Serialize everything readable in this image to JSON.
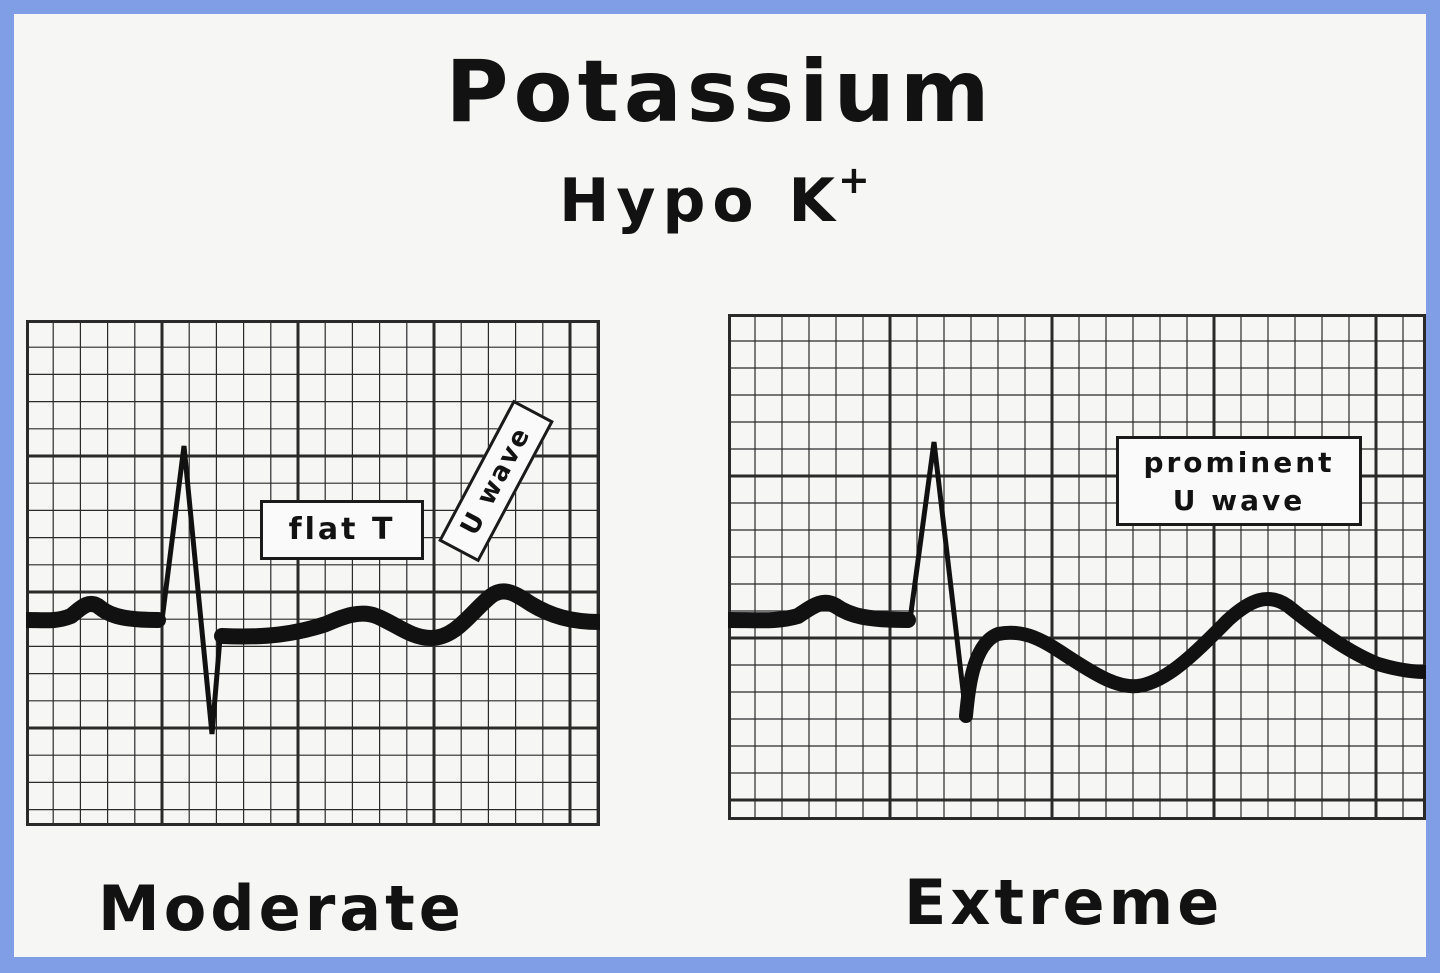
{
  "title": "Potassium",
  "subtitle": {
    "text": "Hypo K",
    "superscript": "+"
  },
  "panels": [
    {
      "caption": "Moderate",
      "annotations": {
        "flat_t": "flat T",
        "u_wave": "U wave"
      }
    },
    {
      "caption": "Extreme",
      "annotations": {
        "prominent_line1": "prominent",
        "prominent_line2": "U wave"
      }
    }
  ],
  "colors": {
    "frame": "#7f9ee6",
    "background": "#f6f6f4",
    "ink": "#121212",
    "grid": "#2a2a2a"
  }
}
